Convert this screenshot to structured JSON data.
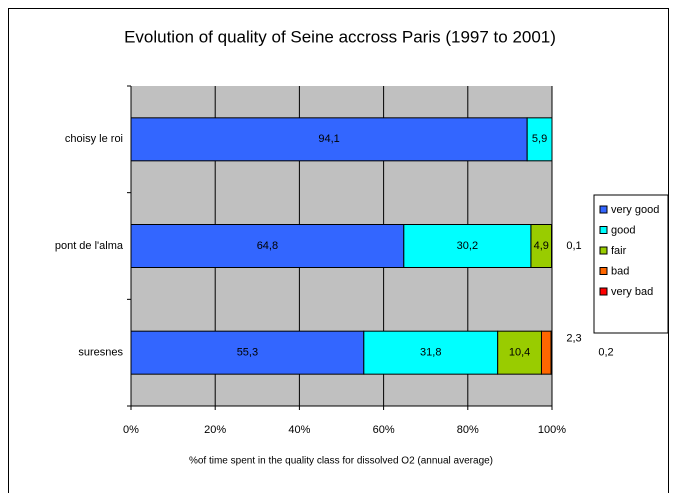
{
  "chart_data": {
    "type": "stacked-hbar",
    "title": "Evolution of quality of Seine accross Paris (1997 to 2001)",
    "x_label": "%of time spent in the quality class for dissolved O2 (annual average)",
    "categories": [
      "choisy le roi",
      "pont de l'alma",
      "suresnes"
    ],
    "series": [
      {
        "name": "very good",
        "color": "#3366ff",
        "values": [
          94.1,
          64.8,
          55.3
        ],
        "value_labels": [
          "94,1",
          "64,8",
          "55,3"
        ]
      },
      {
        "name": "good",
        "color": "#00ffff",
        "values": [
          5.9,
          30.2,
          31.8
        ],
        "value_labels": [
          "5,9",
          "30,2",
          "31,8"
        ]
      },
      {
        "name": "fair",
        "color": "#99cc00",
        "values": [
          null,
          4.9,
          10.4
        ],
        "value_labels": [
          null,
          "4,9",
          "10,4"
        ]
      },
      {
        "name": "bad",
        "color": "#ff6600",
        "values": [
          null,
          0.1,
          2.3
        ],
        "value_labels": [
          null,
          "0,1",
          "2,3"
        ]
      },
      {
        "name": "very bad",
        "color": "#ff0000",
        "values": [
          null,
          null,
          0.2
        ],
        "value_labels": [
          null,
          null,
          "0,2"
        ]
      }
    ],
    "xlim": [
      0,
      100
    ],
    "xticks": [
      {
        "value": 0,
        "label": "0%"
      },
      {
        "value": 20,
        "label": "20%"
      },
      {
        "value": 40,
        "label": "40%"
      },
      {
        "value": 60,
        "label": "60%"
      },
      {
        "value": 80,
        "label": "80%"
      },
      {
        "value": 100,
        "label": "100%"
      }
    ],
    "grid": true,
    "legend": "right"
  }
}
